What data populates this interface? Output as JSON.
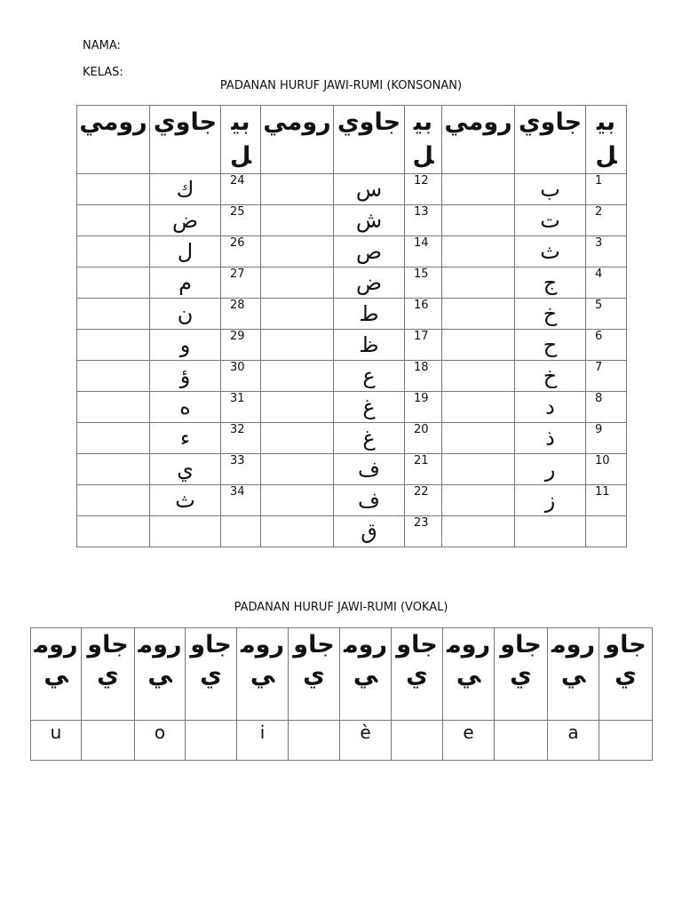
{
  "header": {
    "nama_label": "NAMA:",
    "kelas_label": "KELAS:"
  },
  "konsonan": {
    "title": "PADANAN HURUF JAWI-RUMI (KONSONAN)",
    "headers": [
      "رومي",
      "جاوي",
      "بيل",
      "رومي",
      "جاوي",
      "بيل",
      "رومي",
      "جاوي",
      "بيل"
    ],
    "groups": [
      {
        "numbers": [
          "24",
          "25",
          "26",
          "27",
          "28",
          "29",
          "30",
          "31",
          "32",
          "33",
          "34",
          ""
        ],
        "jawi": [
          "ك",
          "ض",
          "ل",
          "م",
          "ن",
          "و",
          "ؤ",
          "ه",
          "ء",
          "ي",
          "ث",
          ""
        ]
      },
      {
        "numbers": [
          "12",
          "13",
          "14",
          "15",
          "16",
          "17",
          "18",
          "19",
          "20",
          "21",
          "22",
          "23"
        ],
        "jawi": [
          "س",
          "ش",
          "ص",
          "ض",
          "ط",
          "ظ",
          "ع",
          "غ",
          "غ",
          "ف",
          "ف",
          "ق"
        ]
      },
      {
        "numbers": [
          "1",
          "2",
          "3",
          "4",
          "5",
          "6",
          "7",
          "8",
          "9",
          "10",
          "11",
          ""
        ],
        "jawi": [
          "ب",
          "ت",
          "ث",
          "ج",
          "خ",
          "ح",
          "خ",
          "د",
          "ذ",
          "ر",
          "ز",
          ""
        ]
      }
    ]
  },
  "vokal": {
    "title": "PADANAN HURUF JAWI-RUMI (VOKAL)",
    "headers": [
      "رومي",
      "جاوي",
      "رومي",
      "جاوي",
      "رومي",
      "جاوي",
      "رومي",
      "جاوي",
      "رومي",
      "جاوي",
      "رومي",
      "جاوي"
    ],
    "rumi": [
      "u",
      "o",
      "i",
      "è",
      "e",
      "a"
    ]
  }
}
